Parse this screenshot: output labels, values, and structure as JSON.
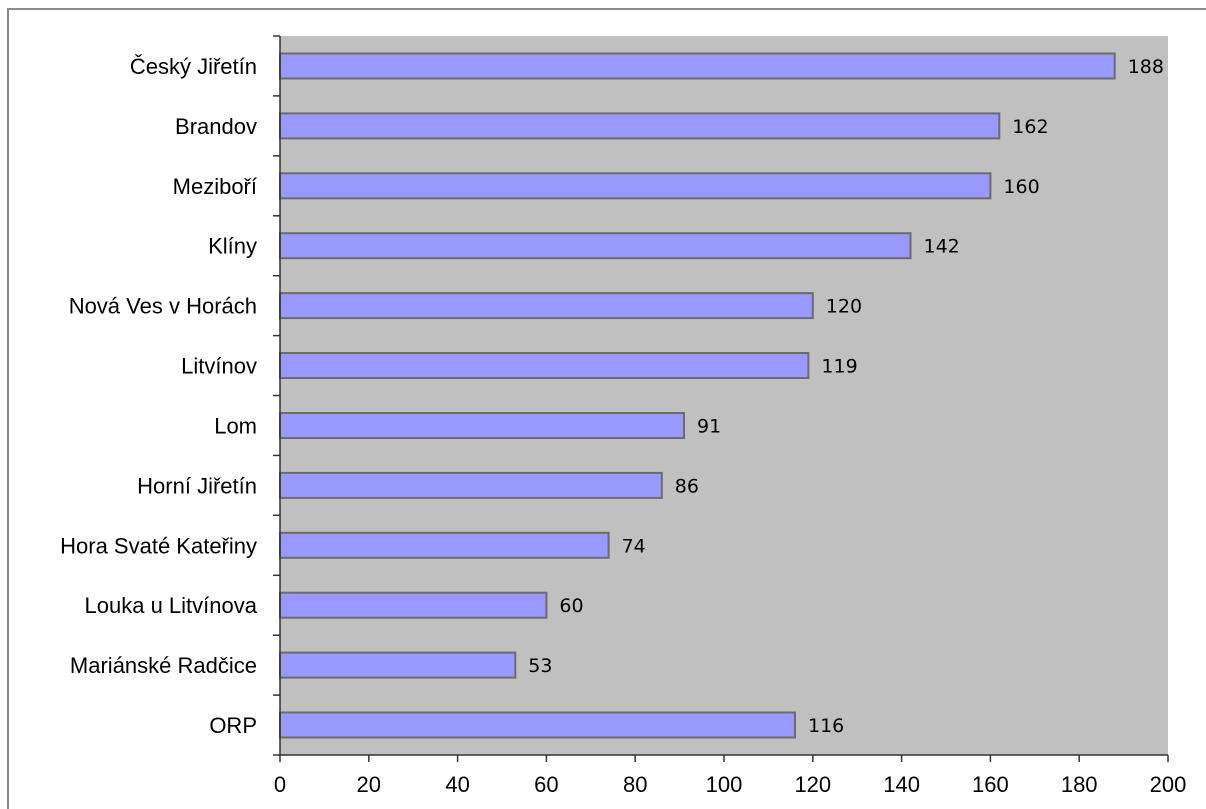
{
  "chart_data": {
    "type": "bar",
    "orientation": "horizontal",
    "categories": [
      "Český Jiřetín",
      "Brandov",
      "Meziboří",
      "Klíny",
      "Nová Ves v Horách",
      "Litvínov",
      "Lom",
      "Horní Jiřetín",
      "Hora Svaté Kateřiny",
      "Louka u Litvínova",
      "Mariánské Radčice",
      "ORP"
    ],
    "values": [
      188,
      162,
      160,
      142,
      120,
      119,
      91,
      86,
      74,
      60,
      53,
      116
    ],
    "data_labels": [
      "188",
      "162",
      "160",
      "142",
      "120",
      "119",
      "91",
      "86",
      "74",
      "60",
      "53",
      "116"
    ],
    "xlim": [
      0,
      200
    ],
    "x_ticks": [
      0,
      20,
      40,
      60,
      80,
      100,
      120,
      140,
      160,
      180,
      200
    ],
    "x_tick_labels": [
      "0",
      "20",
      "40",
      "60",
      "80",
      "100",
      "120",
      "140",
      "160",
      "180",
      "200"
    ],
    "grid": false,
    "legend": "none",
    "colors": {
      "bar_fill": "#9999ff",
      "bar_stroke": "#6b6b6b",
      "plot_background": "#c0c0c0",
      "axis": "#333333"
    }
  }
}
